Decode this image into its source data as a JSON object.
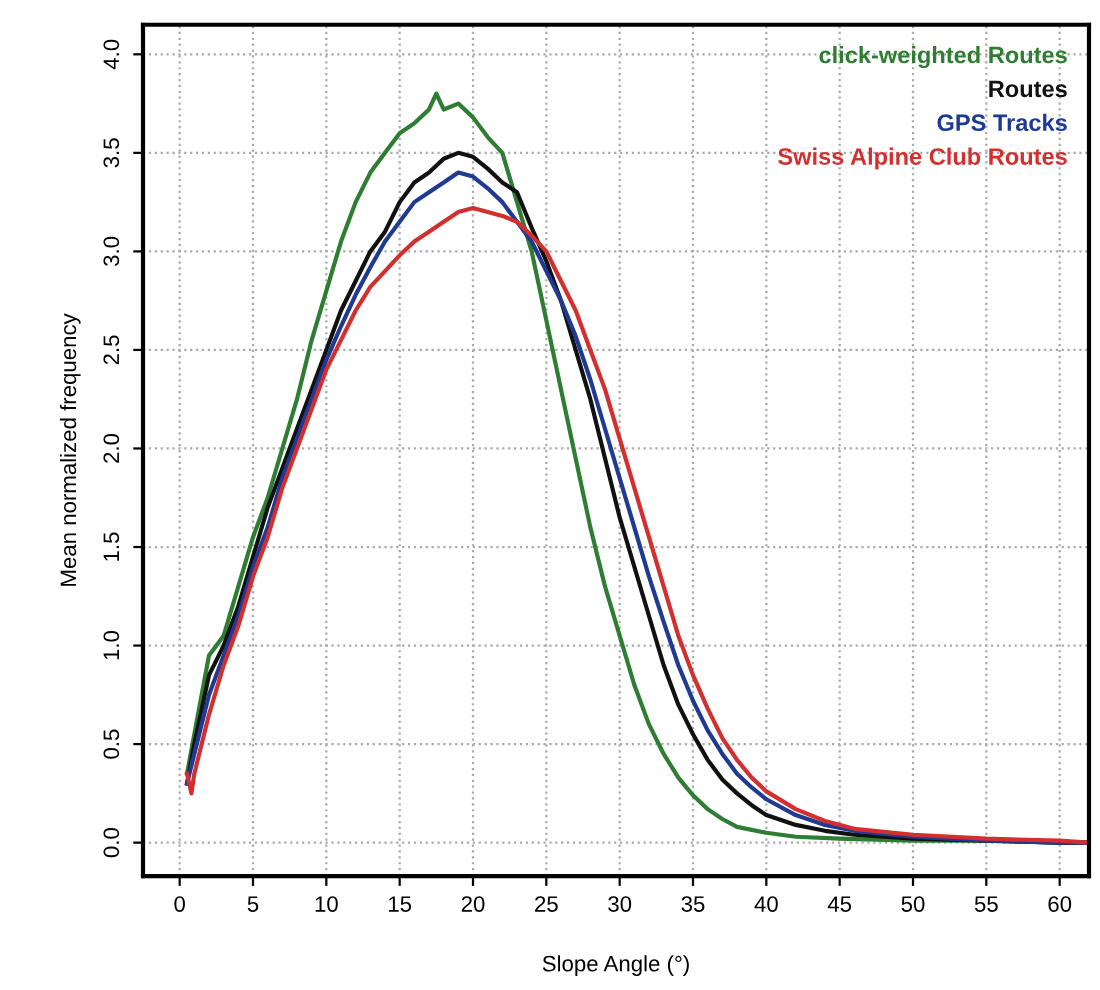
{
  "chart_data": {
    "type": "line",
    "xlabel": "Slope Angle (°)",
    "ylabel": "Mean normalized frequency",
    "xlim": [
      -2.5,
      62
    ],
    "ylim": [
      -0.17,
      4.15
    ],
    "xticks": [
      0,
      5,
      10,
      15,
      20,
      25,
      30,
      35,
      40,
      45,
      50,
      55,
      60
    ],
    "yticks": [
      {
        "value": 0,
        "label": "0.0"
      },
      {
        "value": 0.5,
        "label": "0.5"
      },
      {
        "value": 1,
        "label": "1.0"
      },
      {
        "value": 1.5,
        "label": "1.5"
      },
      {
        "value": 2,
        "label": "2.0"
      },
      {
        "value": 2.5,
        "label": "2.5"
      },
      {
        "value": 3,
        "label": "3.0"
      },
      {
        "value": 3.5,
        "label": "3.5"
      },
      {
        "value": 4,
        "label": "4.0"
      }
    ],
    "grid": true,
    "legend": "top right",
    "marker": "none",
    "line_style": "solid",
    "series": [
      {
        "name": "click-weighted Routes",
        "color": "#2e7d32",
        "x": [
          0.5,
          1,
          2,
          3,
          4,
          5,
          6,
          7,
          8,
          9,
          10,
          11,
          12,
          13,
          14,
          15,
          16,
          17,
          17.5,
          18,
          19,
          20,
          21,
          22,
          23,
          24,
          25,
          26,
          27,
          28,
          29,
          30,
          31,
          32,
          33,
          34,
          35,
          36,
          37,
          38,
          40,
          42,
          45,
          50,
          55,
          60,
          62
        ],
        "values": [
          0.35,
          0.55,
          0.95,
          1.05,
          1.3,
          1.55,
          1.75,
          2.0,
          2.25,
          2.55,
          2.8,
          3.05,
          3.25,
          3.4,
          3.5,
          3.6,
          3.65,
          3.72,
          3.8,
          3.72,
          3.75,
          3.68,
          3.58,
          3.5,
          3.25,
          3.0,
          2.65,
          2.3,
          1.95,
          1.6,
          1.3,
          1.05,
          0.8,
          0.6,
          0.45,
          0.33,
          0.24,
          0.17,
          0.12,
          0.08,
          0.05,
          0.03,
          0.02,
          0.01,
          0.01,
          0.0,
          0.0
        ]
      },
      {
        "name": "Routes",
        "color": "#111111",
        "x": [
          0.5,
          1,
          2,
          3,
          4,
          5,
          6,
          7,
          8,
          9,
          10,
          11,
          12,
          13,
          14,
          15,
          16,
          17,
          18,
          19,
          20,
          21,
          22,
          23,
          24,
          25,
          26,
          27,
          28,
          29,
          30,
          31,
          32,
          33,
          34,
          35,
          36,
          37,
          38,
          39,
          40,
          42,
          44,
          46,
          50,
          55,
          60,
          62
        ],
        "values": [
          0.3,
          0.5,
          0.85,
          1.0,
          1.2,
          1.45,
          1.7,
          1.9,
          2.1,
          2.3,
          2.5,
          2.7,
          2.85,
          3.0,
          3.1,
          3.25,
          3.35,
          3.4,
          3.47,
          3.5,
          3.48,
          3.42,
          3.35,
          3.3,
          3.12,
          2.95,
          2.75,
          2.5,
          2.25,
          1.95,
          1.65,
          1.4,
          1.15,
          0.9,
          0.7,
          0.55,
          0.42,
          0.32,
          0.25,
          0.19,
          0.14,
          0.09,
          0.06,
          0.04,
          0.02,
          0.01,
          0.0,
          0.0
        ]
      },
      {
        "name": "GPS Tracks",
        "color": "#1f3a93",
        "x": [
          0.5,
          1,
          2,
          3,
          4,
          5,
          6,
          7,
          8,
          9,
          10,
          11,
          12,
          13,
          14,
          15,
          16,
          17,
          18,
          19,
          20,
          21,
          22,
          23,
          24,
          25,
          26,
          27,
          28,
          29,
          30,
          31,
          32,
          33,
          34,
          35,
          36,
          37,
          38,
          39,
          40,
          42,
          44,
          46,
          50,
          55,
          60,
          62
        ],
        "values": [
          0.3,
          0.45,
          0.75,
          0.95,
          1.15,
          1.4,
          1.6,
          1.85,
          2.05,
          2.25,
          2.45,
          2.62,
          2.78,
          2.92,
          3.05,
          3.15,
          3.25,
          3.3,
          3.35,
          3.4,
          3.38,
          3.32,
          3.25,
          3.15,
          3.05,
          2.9,
          2.75,
          2.57,
          2.35,
          2.1,
          1.85,
          1.6,
          1.35,
          1.12,
          0.9,
          0.72,
          0.57,
          0.45,
          0.35,
          0.28,
          0.22,
          0.14,
          0.09,
          0.06,
          0.03,
          0.01,
          0.0,
          0.0
        ]
      },
      {
        "name": "Swiss Alpine Club Routes",
        "color": "#d32f2f",
        "x": [
          0.5,
          0.8,
          1,
          2,
          3,
          4,
          5,
          6,
          7,
          8,
          9,
          10,
          11,
          12,
          13,
          14,
          15,
          16,
          17,
          18,
          19,
          20,
          21,
          22,
          23,
          24,
          25,
          26,
          27,
          28,
          29,
          30,
          31,
          32,
          33,
          34,
          35,
          36,
          37,
          38,
          39,
          40,
          42,
          44,
          46,
          50,
          55,
          60,
          62
        ],
        "values": [
          0.35,
          0.25,
          0.35,
          0.65,
          0.9,
          1.1,
          1.35,
          1.55,
          1.8,
          2.0,
          2.2,
          2.4,
          2.55,
          2.7,
          2.82,
          2.9,
          2.98,
          3.05,
          3.1,
          3.15,
          3.2,
          3.22,
          3.2,
          3.18,
          3.15,
          3.08,
          3.0,
          2.85,
          2.7,
          2.5,
          2.3,
          2.05,
          1.8,
          1.55,
          1.3,
          1.05,
          0.85,
          0.68,
          0.53,
          0.42,
          0.33,
          0.26,
          0.17,
          0.11,
          0.07,
          0.04,
          0.02,
          0.01,
          0.0
        ]
      }
    ]
  }
}
